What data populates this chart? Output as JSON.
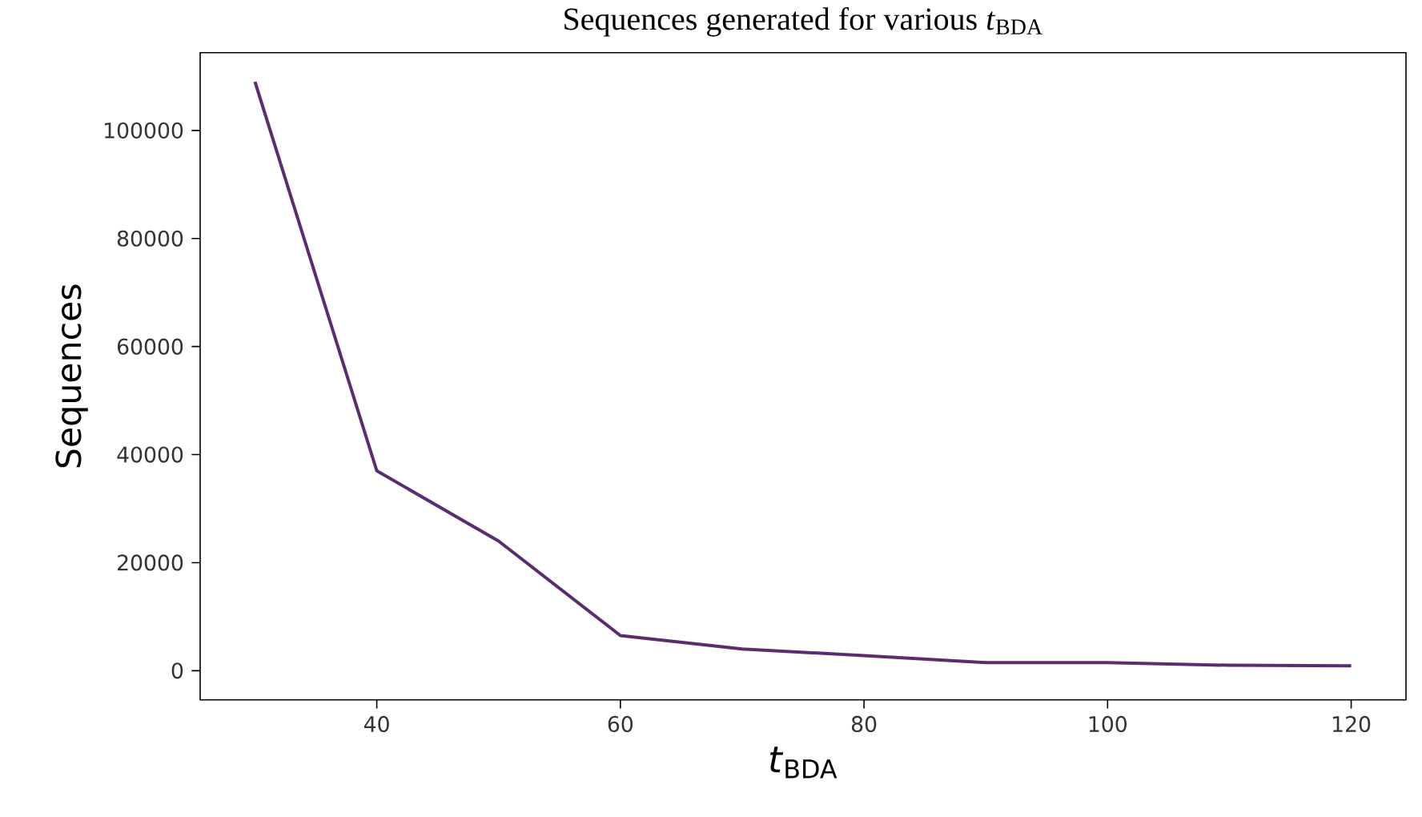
{
  "chart_data": {
    "type": "line",
    "title": "Sequences generated for various *t*$_{BDA}$",
    "xlabel": "*t*$_{BDA}$",
    "ylabel": "Sequences",
    "x": [
      30,
      40,
      50,
      60,
      70,
      80,
      90,
      100,
      110,
      120
    ],
    "series": [
      {
        "color": "#5b2c6f",
        "values": [
          109000,
          37000,
          24000,
          6500,
          4000,
          2800,
          1500,
          1500,
          1000,
          900
        ]
      }
    ],
    "xlim": [
      25.5,
      124.5
    ],
    "ylim": [
      -5400,
      114400
    ],
    "xticks": [
      40,
      60,
      80,
      100,
      120
    ],
    "yticks": [
      0,
      20000,
      40000,
      60000,
      80000,
      100000
    ],
    "marker": "none",
    "line_style": "solid"
  }
}
